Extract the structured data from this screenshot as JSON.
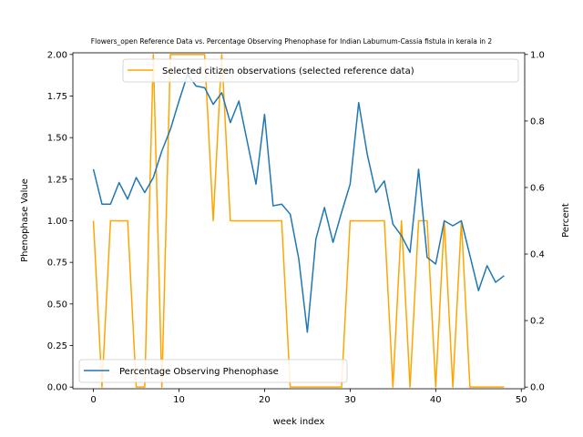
{
  "chart_data": {
    "type": "line",
    "title": "Flowers_open Reference Data vs. Percentage Observing Phenophase for Indian Laburnum-Cassia fistula in kerala in 2",
    "xlabel": "week index",
    "ylabel_left": "Phenophase Value",
    "ylabel_right": "Percent",
    "xlim": [
      -2.4,
      50.4
    ],
    "ylim_left": [
      -0.01,
      2.01
    ],
    "ylim_right": [
      -0.005,
      1.005
    ],
    "x_ticks": [
      0,
      10,
      20,
      30,
      40,
      50
    ],
    "y_ticks_left": [
      0.0,
      0.25,
      0.5,
      0.75,
      1.0,
      1.25,
      1.5,
      1.75,
      2.0
    ],
    "y_ticks_right": [
      0.0,
      0.2,
      0.4,
      0.6,
      0.8,
      1.0
    ],
    "legend_upper": {
      "placement": "top-right",
      "label": "Selected citizen observations (selected reference data)"
    },
    "legend_lower": {
      "placement": "bottom-left",
      "label": "Percentage Observing Phenophase"
    },
    "series": [
      {
        "name": "Selected citizen observations (selected reference data)",
        "axis": "left",
        "color": "#ffa500",
        "x": [
          0,
          1,
          2,
          3,
          4,
          5,
          6,
          7,
          8,
          9,
          10,
          11,
          12,
          13,
          14,
          15,
          16,
          17,
          18,
          19,
          20,
          21,
          22,
          23,
          24,
          25,
          26,
          27,
          28,
          29,
          30,
          31,
          32,
          33,
          34,
          35,
          36,
          37,
          38,
          39,
          40,
          41,
          42,
          43,
          44,
          45,
          46,
          47,
          48
        ],
        "values": [
          1,
          0,
          1,
          1,
          1,
          0,
          0,
          2,
          0,
          2,
          2,
          2,
          2,
          2,
          1,
          2,
          1,
          1,
          1,
          1,
          1,
          1,
          1,
          0,
          0,
          0,
          0,
          0,
          0,
          0,
          1,
          1,
          1,
          1,
          1,
          0,
          1,
          0,
          1,
          1,
          0,
          1,
          0,
          1,
          0,
          0,
          0,
          0,
          0
        ]
      },
      {
        "name": "Percentage Observing Phenophase",
        "axis": "right",
        "color": "#1f77b4",
        "x": [
          0,
          1,
          2,
          3,
          4,
          5,
          6,
          7,
          8,
          9,
          10,
          11,
          12,
          13,
          14,
          15,
          16,
          17,
          18,
          19,
          20,
          21,
          22,
          23,
          24,
          25,
          26,
          27,
          28,
          29,
          30,
          31,
          32,
          33,
          34,
          35,
          36,
          37,
          38,
          39,
          40,
          41,
          42,
          43,
          44,
          45,
          46,
          47,
          48
        ],
        "values": [
          0.655,
          0.55,
          0.55,
          0.615,
          0.565,
          0.63,
          0.585,
          0.63,
          0.71,
          0.775,
          0.86,
          0.94,
          0.905,
          0.9,
          0.85,
          0.885,
          0.795,
          0.86,
          0.735,
          0.61,
          0.82,
          0.545,
          0.55,
          0.52,
          0.385,
          0.165,
          0.445,
          0.54,
          0.435,
          0.525,
          0.61,
          0.855,
          0.7,
          0.585,
          0.62,
          0.49,
          0.455,
          0.405,
          0.655,
          0.39,
          0.37,
          0.5,
          0.485,
          0.5,
          0.395,
          0.29,
          0.365,
          0.315,
          0.335
        ]
      }
    ]
  }
}
